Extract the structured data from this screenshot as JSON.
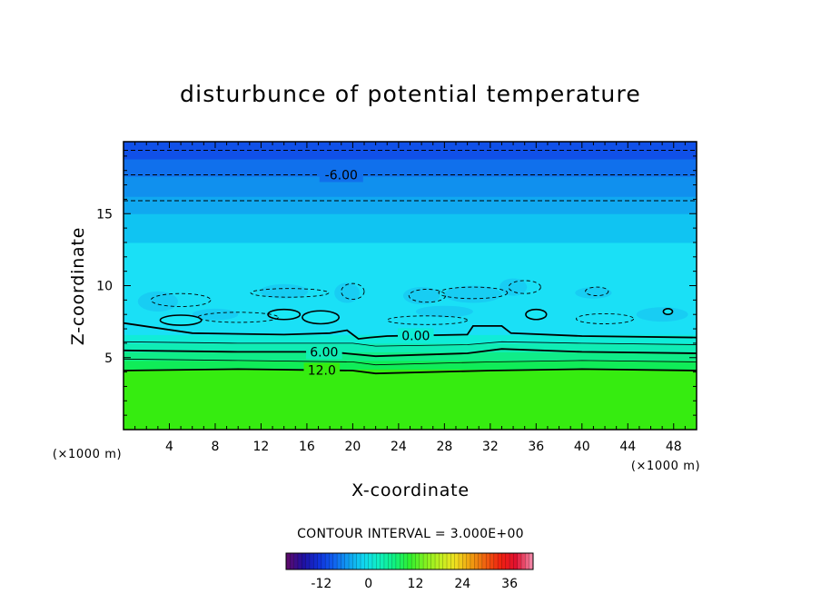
{
  "chart_data": {
    "type": "heatmap",
    "title": "disturbunce of potential temperature",
    "xlabel": "X-coordinate",
    "ylabel": "Z-coordinate",
    "x_unit": "(×1000 m)",
    "z_unit": "(×1000 m)",
    "xlim": [
      0,
      50
    ],
    "ylim": [
      0,
      20
    ],
    "x_ticks": [
      "4",
      "8",
      "12",
      "16",
      "20",
      "24",
      "28",
      "32",
      "36",
      "40",
      "44",
      "48"
    ],
    "y_ticks": [
      "5",
      "10",
      "15"
    ],
    "contour_interval_text": "CONTOUR INTERVAL = 3.000E+00",
    "contour_labels": [
      "-6.00",
      "0.00",
      "6.00",
      "12.0"
    ],
    "colorbar": {
      "range": [
        -21,
        42
      ],
      "tick_labels": [
        "-12",
        "0",
        "12",
        "24",
        "36"
      ],
      "colors": [
        "#5a0a6e",
        "#2010a0",
        "#1030d8",
        "#1060f0",
        "#10a0f0",
        "#10d8f0",
        "#10f0c0",
        "#10f080",
        "#30f030",
        "#80f020",
        "#c0f020",
        "#f0e020",
        "#f0a010",
        "#f06010",
        "#f02010",
        "#e01030",
        "#f080a0"
      ]
    },
    "bands": [
      {
        "z_from": 0,
        "z_to": 4.2,
        "value": 18,
        "color": "#36ec10"
      },
      {
        "z_from": 4.2,
        "z_to": 4.8,
        "value": 15,
        "color": "#10ec58"
      },
      {
        "z_from": 4.8,
        "z_to": 5.4,
        "value": 12,
        "color": "#10ec88"
      },
      {
        "z_from": 5.4,
        "z_to": 6.0,
        "value": 9,
        "color": "#10ecb4"
      },
      {
        "z_from": 6.0,
        "z_to": 6.6,
        "value": 3,
        "color": "#10ecd8"
      },
      {
        "z_from": 6.6,
        "z_to": 13.0,
        "value": -2,
        "color": "#1ae0f6"
      },
      {
        "z_from": 13.0,
        "z_to": 15.0,
        "value": -3,
        "color": "#10c4f2"
      },
      {
        "z_from": 15.0,
        "z_to": 16.2,
        "value": -4,
        "color": "#10a8f0"
      },
      {
        "z_from": 16.2,
        "z_to": 17.6,
        "value": -5,
        "color": "#1090ee"
      },
      {
        "z_from": 17.6,
        "z_to": 18.8,
        "value": -6,
        "color": "#1070ec"
      },
      {
        "z_from": 18.8,
        "z_to": 20.0,
        "value": -7,
        "color": "#1050e8"
      }
    ],
    "contours": [
      {
        "value": -9,
        "z": 19.4,
        "style": "dashed"
      },
      {
        "value": -6,
        "z": 17.7,
        "style": "dashed",
        "label": "-6.00",
        "label_x": 19
      },
      {
        "value": -3,
        "z": 15.9,
        "style": "dashed"
      },
      {
        "value": 0,
        "style": "solid",
        "label": "0.00",
        "label_x": 25.5,
        "points": [
          [
            0,
            7.4
          ],
          [
            6,
            6.7
          ],
          [
            14,
            6.6
          ],
          [
            18,
            6.7
          ],
          [
            19.5,
            6.9
          ],
          [
            20.5,
            6.3
          ],
          [
            21.5,
            6.4
          ],
          [
            23,
            6.5
          ],
          [
            30,
            6.6
          ],
          [
            30.5,
            7.2
          ],
          [
            33,
            7.2
          ],
          [
            33.8,
            6.7
          ],
          [
            40,
            6.5
          ],
          [
            50,
            6.4
          ]
        ]
      },
      {
        "value": 3,
        "style": "thin",
        "points": [
          [
            0,
            6.1
          ],
          [
            10,
            6.0
          ],
          [
            20,
            6.0
          ],
          [
            22,
            5.8
          ],
          [
            30,
            5.9
          ],
          [
            33,
            6.1
          ],
          [
            40,
            6.0
          ],
          [
            50,
            5.9
          ]
        ]
      },
      {
        "value": 6,
        "style": "solid",
        "label": "6.00",
        "label_x": 17.5,
        "points": [
          [
            0,
            5.5
          ],
          [
            10,
            5.4
          ],
          [
            18,
            5.4
          ],
          [
            22,
            5.1
          ],
          [
            30,
            5.3
          ],
          [
            33,
            5.6
          ],
          [
            40,
            5.4
          ],
          [
            50,
            5.3
          ]
        ]
      },
      {
        "value": 9,
        "style": "thin",
        "points": [
          [
            0,
            4.9
          ],
          [
            10,
            4.8
          ],
          [
            20,
            4.7
          ],
          [
            22,
            4.5
          ],
          [
            32,
            4.7
          ],
          [
            40,
            4.8
          ],
          [
            50,
            4.7
          ]
        ]
      },
      {
        "value": 12,
        "style": "solid",
        "label": "12.0",
        "label_x": 17.3,
        "points": [
          [
            0,
            4.1
          ],
          [
            10,
            4.2
          ],
          [
            20,
            4.1
          ],
          [
            22,
            3.9
          ],
          [
            32,
            4.1
          ],
          [
            40,
            4.2
          ],
          [
            50,
            4.1
          ]
        ]
      }
    ]
  }
}
